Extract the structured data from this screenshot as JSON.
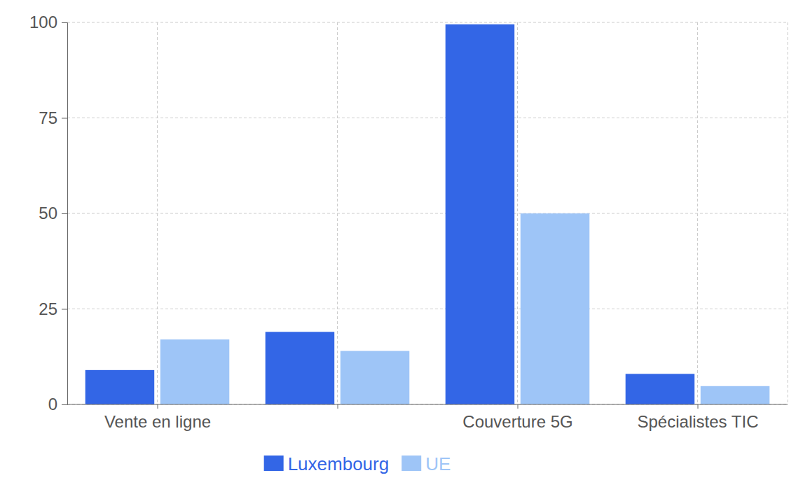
{
  "chart_data": {
    "type": "bar",
    "categories": [
      "Vente en ligne",
      null,
      "Couverture 5G",
      "Spécialistes TIC"
    ],
    "series": [
      {
        "name": "Luxembourg",
        "color": "#3366e6",
        "values": [
          9,
          19,
          99.5,
          8
        ]
      },
      {
        "name": "UE",
        "color": "#9ec5f7",
        "values": [
          17,
          14,
          50,
          4.8
        ]
      }
    ],
    "ylim": [
      0,
      100
    ],
    "yticks": [
      0,
      25,
      50,
      75,
      100
    ],
    "grid": true,
    "legend": "bottom"
  }
}
